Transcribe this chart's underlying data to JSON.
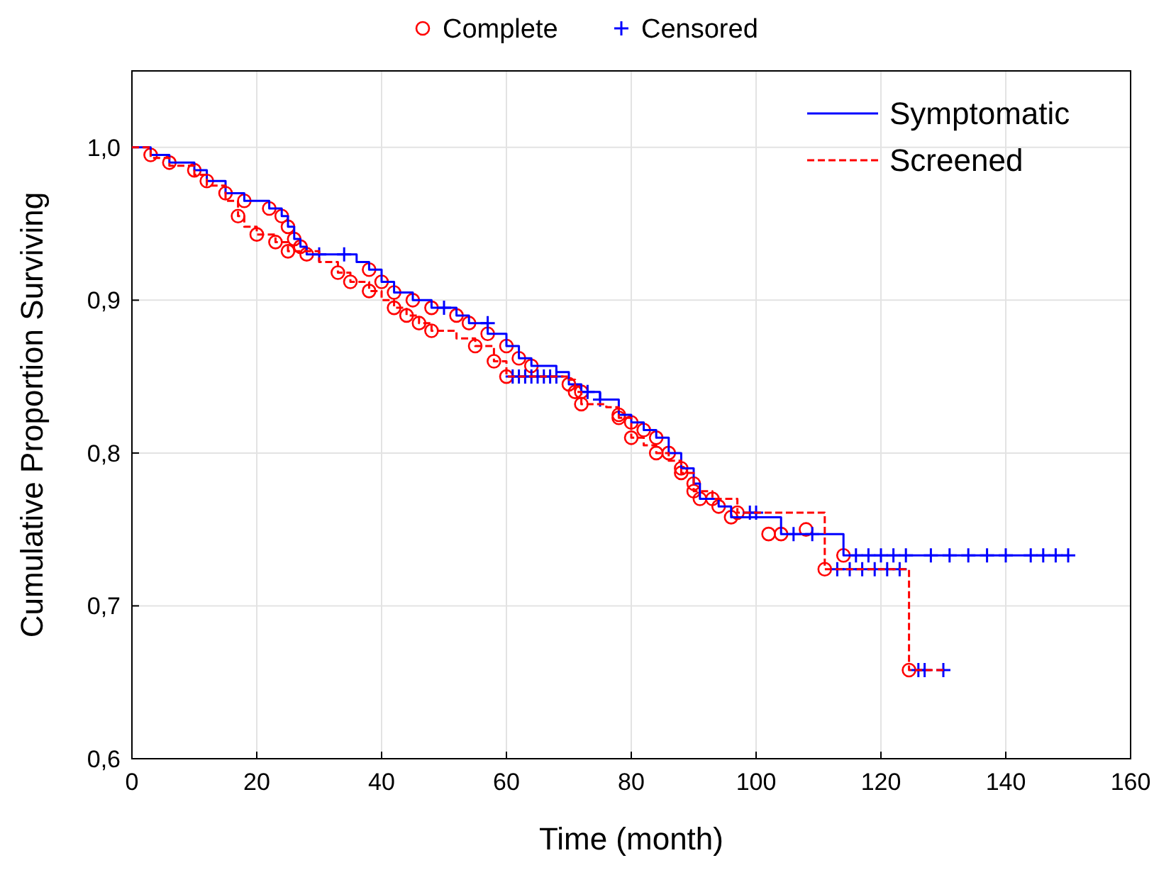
{
  "chart_data": {
    "type": "step",
    "xlabel": "Time (month)",
    "ylabel": "Cumulative Proportion Surviving",
    "xlim": [
      0,
      160
    ],
    "ylim": [
      0.6,
      1.05
    ],
    "xticks": [
      0,
      20,
      40,
      60,
      80,
      100,
      120,
      140,
      160
    ],
    "yticks": [
      {
        "value": 0.6,
        "label": "0,6"
      },
      {
        "value": 0.7,
        "label": "0,7"
      },
      {
        "value": 0.8,
        "label": "0,8"
      },
      {
        "value": 0.9,
        "label": "0,9"
      },
      {
        "value": 1.0,
        "label": "1,0"
      }
    ],
    "grid": true,
    "legend": "top right",
    "series": [
      {
        "name": "Symptomatic",
        "color": "#0000ff",
        "line_style": "solid",
        "marker": "none",
        "x": [
          0,
          3,
          6,
          10,
          12,
          15,
          18,
          22,
          24,
          25,
          26,
          27,
          28,
          36,
          38,
          40,
          42,
          45,
          48,
          52,
          54,
          57,
          60,
          62,
          64,
          68,
          70,
          72,
          75,
          78,
          80,
          82,
          84,
          86,
          88,
          90,
          91,
          94,
          96,
          104,
          114,
          150
        ],
        "values": [
          1.0,
          0.995,
          0.99,
          0.985,
          0.978,
          0.97,
          0.965,
          0.96,
          0.955,
          0.948,
          0.94,
          0.935,
          0.93,
          0.925,
          0.92,
          0.912,
          0.905,
          0.9,
          0.895,
          0.89,
          0.885,
          0.878,
          0.87,
          0.862,
          0.857,
          0.853,
          0.845,
          0.84,
          0.835,
          0.825,
          0.82,
          0.815,
          0.81,
          0.8,
          0.79,
          0.78,
          0.77,
          0.765,
          0.758,
          0.747,
          0.733,
          0.733
        ]
      },
      {
        "name": "Screened",
        "color": "#ff0000",
        "line_style": "dashed",
        "marker": "none",
        "x": [
          0,
          3,
          6,
          10,
          12,
          15,
          17,
          18,
          20,
          23,
          25,
          30,
          33,
          35,
          38,
          40,
          42,
          44,
          46,
          48,
          52,
          55,
          58,
          60,
          70,
          71,
          72,
          76,
          78,
          80,
          82,
          84,
          86,
          88,
          90,
          93,
          97,
          111,
          124.5,
          130
        ],
        "values": [
          1.0,
          0.993,
          0.988,
          0.982,
          0.975,
          0.965,
          0.955,
          0.948,
          0.943,
          0.938,
          0.932,
          0.925,
          0.918,
          0.912,
          0.906,
          0.9,
          0.895,
          0.89,
          0.885,
          0.88,
          0.875,
          0.87,
          0.86,
          0.85,
          0.848,
          0.84,
          0.832,
          0.83,
          0.823,
          0.81,
          0.805,
          0.8,
          0.795,
          0.787,
          0.775,
          0.77,
          0.761,
          0.724,
          0.658,
          0.658
        ]
      },
      {
        "name": "Complete",
        "type": "scatter",
        "color": "#ff0000",
        "marker": "circle",
        "x": [
          3,
          6,
          10,
          12,
          15,
          18,
          22,
          24,
          25,
          26,
          27,
          28,
          38,
          40,
          42,
          45,
          48,
          52,
          54,
          57,
          60,
          62,
          64,
          70,
          72,
          78,
          80,
          82,
          84,
          86,
          88,
          90,
          91,
          94,
          96,
          104,
          114,
          17,
          20,
          23,
          25,
          33,
          35,
          38,
          42,
          44,
          46,
          48,
          55,
          58,
          60,
          71,
          72,
          78,
          80,
          84,
          88,
          90,
          93,
          97,
          102,
          108,
          111,
          124.5
        ],
        "values": [
          0.995,
          0.99,
          0.985,
          0.978,
          0.97,
          0.965,
          0.96,
          0.955,
          0.948,
          0.94,
          0.935,
          0.93,
          0.92,
          0.912,
          0.905,
          0.9,
          0.895,
          0.89,
          0.885,
          0.878,
          0.87,
          0.862,
          0.857,
          0.845,
          0.84,
          0.825,
          0.82,
          0.815,
          0.81,
          0.8,
          0.79,
          0.78,
          0.77,
          0.765,
          0.758,
          0.747,
          0.733,
          0.955,
          0.943,
          0.938,
          0.932,
          0.918,
          0.912,
          0.906,
          0.895,
          0.89,
          0.885,
          0.88,
          0.87,
          0.86,
          0.85,
          0.84,
          0.832,
          0.823,
          0.81,
          0.8,
          0.787,
          0.775,
          0.77,
          0.761,
          0.747,
          0.75,
          0.724,
          0.658
        ]
      },
      {
        "name": "Censored",
        "type": "scatter",
        "color": "#0000ff",
        "marker": "cross",
        "x": [
          30,
          34,
          50,
          57,
          61,
          62,
          63,
          64,
          65,
          66,
          67,
          68,
          73,
          75,
          99,
          100,
          106,
          109,
          113,
          115,
          117,
          119,
          121,
          123,
          116,
          118,
          120,
          122,
          124,
          128,
          131,
          134,
          137,
          140,
          144,
          146,
          148,
          150,
          126,
          127,
          130
        ],
        "values": [
          0.93,
          0.93,
          0.895,
          0.885,
          0.85,
          0.85,
          0.85,
          0.85,
          0.85,
          0.85,
          0.85,
          0.85,
          0.84,
          0.835,
          0.761,
          0.761,
          0.747,
          0.747,
          0.724,
          0.724,
          0.724,
          0.724,
          0.724,
          0.724,
          0.733,
          0.733,
          0.733,
          0.733,
          0.733,
          0.733,
          0.733,
          0.733,
          0.733,
          0.733,
          0.733,
          0.733,
          0.733,
          0.733,
          0.658,
          0.658,
          0.658
        ]
      }
    ]
  }
}
